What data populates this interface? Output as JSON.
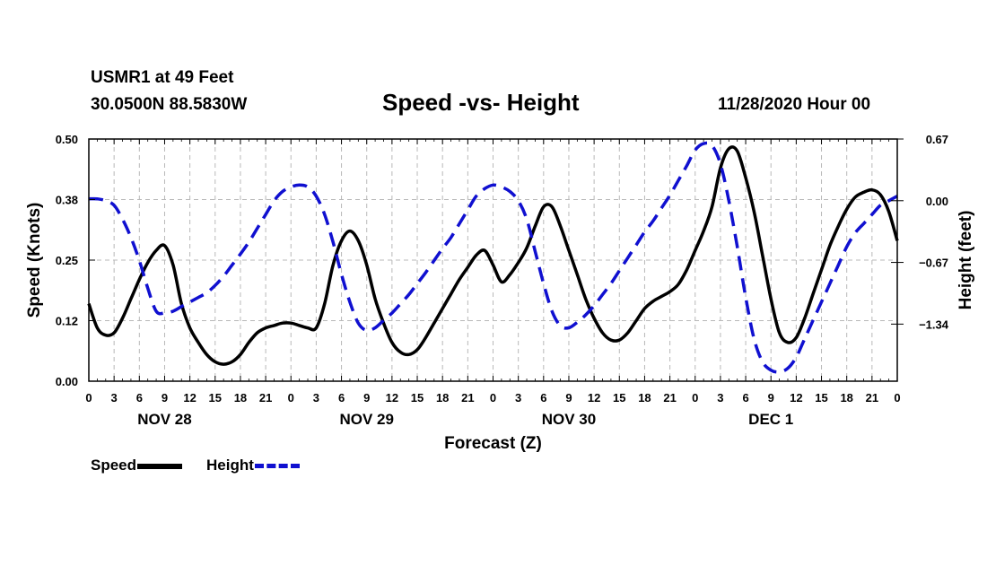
{
  "header": {
    "station": "USMR1 at 49 Feet",
    "coords": "30.0500N 88.5830W",
    "title": "Speed -vs- Height",
    "datetime": "11/28/2020 Hour 00"
  },
  "legend": {
    "speed_label": "Speed",
    "height_label": "Height"
  },
  "colors": {
    "speed": "#000000",
    "height": "#1010d0",
    "grid": "#b8b8b8"
  },
  "chart_data": {
    "type": "line",
    "title": "Speed -vs- Height",
    "xlabel": "Forecast (Z)",
    "ylabel_left": "Speed (Knots)",
    "ylabel_right": "Height (feet)",
    "xlim": [
      0,
      96
    ],
    "ylim_left": [
      0.0,
      0.5
    ],
    "ylim_right": [
      -1.96,
      0.67
    ],
    "x_ticks": [
      0,
      3,
      6,
      9,
      12,
      15,
      18,
      21,
      24,
      27,
      30,
      33,
      36,
      39,
      42,
      45,
      48,
      51,
      54,
      57,
      60,
      63,
      66,
      69,
      72,
      75,
      78,
      81,
      84,
      87,
      90,
      93,
      96
    ],
    "x_tick_labels": [
      "0",
      "3",
      "6",
      "9",
      "12",
      "15",
      "18",
      "21",
      "0",
      "3",
      "6",
      "9",
      "12",
      "15",
      "18",
      "21",
      "0",
      "3",
      "6",
      "9",
      "12",
      "15",
      "18",
      "21",
      "0",
      "3",
      "6",
      "9",
      "12",
      "15",
      "18",
      "21",
      "0"
    ],
    "day_labels": [
      {
        "hour": 9,
        "text": "NOV 28"
      },
      {
        "hour": 33,
        "text": "NOV 29"
      },
      {
        "hour": 57,
        "text": "NOV 30"
      },
      {
        "hour": 81,
        "text": "DEC 1"
      }
    ],
    "left_ticks": [
      0.0,
      0.125,
      0.25,
      0.375,
      0.5
    ],
    "left_tick_labels": [
      "0.00",
      "0.12",
      "0.25",
      "0.38",
      "0.50"
    ],
    "right_ticks": [
      0.67,
      0.0,
      -0.67,
      -1.34
    ],
    "right_tick_labels": [
      "0.67",
      "0.00",
      "−0.67",
      "−1.34"
    ],
    "grid": true,
    "series": [
      {
        "name": "Speed",
        "axis": "left",
        "x": [
          0,
          1,
          2,
          3,
          4,
          5,
          6,
          7,
          8,
          9,
          10,
          11,
          12,
          13,
          14,
          15,
          16,
          17,
          18,
          19,
          20,
          21,
          22,
          23,
          24,
          25,
          26,
          27,
          28,
          29,
          30,
          31,
          32,
          33,
          34,
          35,
          36,
          37,
          38,
          39,
          40,
          41,
          42,
          43,
          44,
          45,
          46,
          47,
          48,
          49,
          50,
          51,
          52,
          53,
          54,
          55,
          56,
          57,
          58,
          59,
          60,
          61,
          62,
          63,
          64,
          65,
          66,
          67,
          68,
          69,
          70,
          71,
          72,
          73,
          74,
          75,
          76,
          77,
          78,
          79,
          80,
          81,
          82,
          83,
          84,
          85,
          86,
          87,
          88,
          89,
          90,
          91,
          92,
          93,
          94,
          95,
          96
        ],
        "values": [
          0.16,
          0.11,
          0.095,
          0.1,
          0.13,
          0.17,
          0.21,
          0.245,
          0.27,
          0.28,
          0.24,
          0.16,
          0.11,
          0.08,
          0.055,
          0.04,
          0.035,
          0.04,
          0.055,
          0.08,
          0.1,
          0.11,
          0.115,
          0.12,
          0.12,
          0.115,
          0.11,
          0.11,
          0.16,
          0.24,
          0.29,
          0.31,
          0.29,
          0.24,
          0.17,
          0.12,
          0.08,
          0.06,
          0.055,
          0.065,
          0.09,
          0.12,
          0.15,
          0.18,
          0.21,
          0.235,
          0.26,
          0.27,
          0.24,
          0.205,
          0.22,
          0.245,
          0.275,
          0.32,
          0.36,
          0.36,
          0.32,
          0.27,
          0.22,
          0.17,
          0.13,
          0.1,
          0.085,
          0.085,
          0.1,
          0.125,
          0.15,
          0.165,
          0.175,
          0.185,
          0.2,
          0.23,
          0.27,
          0.31,
          0.36,
          0.44,
          0.48,
          0.475,
          0.42,
          0.35,
          0.26,
          0.17,
          0.1,
          0.08,
          0.09,
          0.13,
          0.18,
          0.23,
          0.28,
          0.32,
          0.355,
          0.38,
          0.39,
          0.395,
          0.385,
          0.35,
          0.29
        ]
      },
      {
        "name": "Height",
        "axis": "right",
        "x": [
          0,
          1,
          2,
          3,
          4,
          5,
          6,
          7,
          8,
          9,
          10,
          11,
          12,
          13,
          14,
          15,
          16,
          17,
          18,
          19,
          20,
          21,
          22,
          23,
          24,
          25,
          26,
          27,
          28,
          29,
          30,
          31,
          32,
          33,
          34,
          35,
          36,
          37,
          38,
          39,
          40,
          41,
          42,
          43,
          44,
          45,
          46,
          47,
          48,
          49,
          50,
          51,
          52,
          53,
          54,
          55,
          56,
          57,
          58,
          59,
          60,
          61,
          62,
          63,
          64,
          65,
          66,
          67,
          68,
          69,
          70,
          71,
          72,
          73,
          74,
          75,
          76,
          77,
          78,
          79,
          80,
          81,
          82,
          83,
          84,
          85,
          86,
          87,
          88,
          89,
          90,
          91,
          92,
          93,
          94,
          95,
          96
        ],
        "values": [
          0.02,
          0.02,
          0.0,
          -0.05,
          -0.2,
          -0.4,
          -0.65,
          -0.95,
          -1.2,
          -1.22,
          -1.2,
          -1.15,
          -1.1,
          -1.05,
          -1.0,
          -0.92,
          -0.82,
          -0.7,
          -0.58,
          -0.45,
          -0.3,
          -0.15,
          0.0,
          0.1,
          0.15,
          0.17,
          0.15,
          0.05,
          -0.15,
          -0.45,
          -0.8,
          -1.1,
          -1.33,
          -1.41,
          -1.38,
          -1.3,
          -1.22,
          -1.12,
          -1.02,
          -0.9,
          -0.78,
          -0.65,
          -0.52,
          -0.4,
          -0.25,
          -0.1,
          0.05,
          0.13,
          0.17,
          0.15,
          0.1,
          0.0,
          -0.2,
          -0.55,
          -0.9,
          -1.2,
          -1.36,
          -1.38,
          -1.32,
          -1.24,
          -1.14,
          -1.02,
          -0.9,
          -0.76,
          -0.62,
          -0.48,
          -0.34,
          -0.22,
          -0.08,
          0.06,
          0.22,
          0.38,
          0.55,
          0.62,
          0.6,
          0.4,
          0.0,
          -0.5,
          -1.05,
          -1.5,
          -1.75,
          -1.84,
          -1.86,
          -1.82,
          -1.7,
          -1.5,
          -1.3,
          -1.1,
          -0.9,
          -0.7,
          -0.5,
          -0.35,
          -0.25,
          -0.15,
          -0.05,
          0.0,
          0.05
        ]
      }
    ]
  }
}
